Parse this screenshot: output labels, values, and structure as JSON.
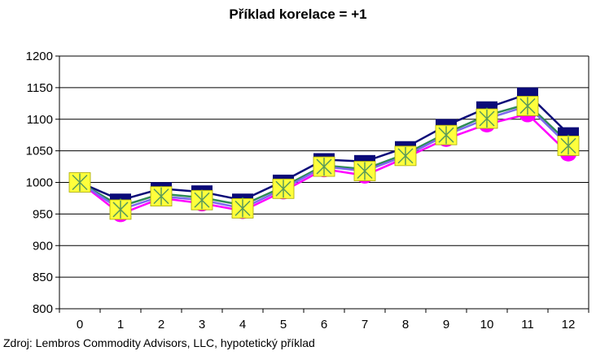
{
  "chart_data": {
    "type": "line",
    "title": "Příklad korelace = +1",
    "xlabel": "",
    "ylabel": "",
    "x": [
      0,
      1,
      2,
      3,
      4,
      5,
      6,
      7,
      8,
      9,
      10,
      11,
      12
    ],
    "ylim": [
      800,
      1200
    ],
    "yticks": [
      800,
      850,
      900,
      950,
      1000,
      1050,
      1100,
      1150,
      1200
    ],
    "grid": true,
    "series": [
      {
        "color": "#0a0a78",
        "marker": "square",
        "values": [
          1000,
          972,
          990,
          985,
          972,
          1002,
          1036,
          1033,
          1055,
          1090,
          1118,
          1140,
          1077
        ]
      },
      {
        "color": "#2e8b57",
        "marker": "diamond",
        "values": [
          1000,
          962,
          982,
          976,
          964,
          993,
          1027,
          1021,
          1045,
          1078,
          1106,
          1124,
          1063
        ]
      },
      {
        "color": "#ff00ff",
        "marker": "circle",
        "values": [
          1000,
          950,
          975,
          967,
          955,
          986,
          1021,
          1011,
          1039,
          1069,
          1092,
          1108,
          1046
        ]
      },
      {
        "color": "#7b68ee",
        "marker": "x-square",
        "values": [
          1000,
          957,
          978,
          972,
          959,
          990,
          1025,
          1018,
          1042,
          1075,
          1101,
          1121,
          1058
        ]
      }
    ]
  },
  "footer": {
    "source": "Zdroj: Lembros Commodity Advisors, LLC, hypotetický příklad"
  }
}
